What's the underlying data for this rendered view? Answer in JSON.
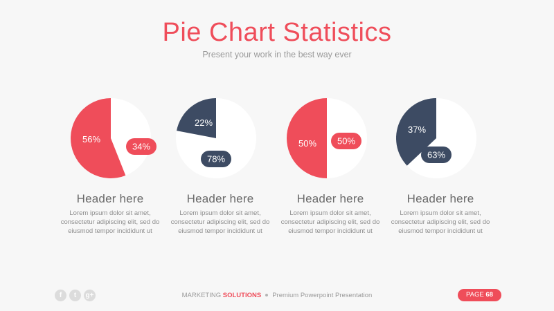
{
  "title": "Pie Chart Statistics",
  "subtitle": "Present your work in the best way ever",
  "colors": {
    "red": "#ef4d5a",
    "navy": "#3d4b63",
    "white": "#ffffff",
    "background": "#f7f7f7"
  },
  "chart_data": [
    {
      "type": "pie",
      "values": [
        56,
        34
      ],
      "slices": [
        {
          "label": "56%",
          "value": 56,
          "color": "#ef4d5a",
          "style": "slice"
        },
        {
          "label": "34%",
          "value": 34,
          "color": "#ef4d5a",
          "style": "pill"
        }
      ],
      "header": "Header here",
      "body": "Lorem ipsum dolor sit amet, consectetur adipiscing elit, sed do eiusmod tempor incididunt ut"
    },
    {
      "type": "pie",
      "values": [
        22,
        78
      ],
      "slices": [
        {
          "label": "22%",
          "value": 22,
          "color": "#3d4b63",
          "style": "slice"
        },
        {
          "label": "78%",
          "value": 78,
          "color": "#3d4b63",
          "style": "pill"
        }
      ],
      "header": "Header here",
      "body": "Lorem ipsum dolor sit amet, consectetur adipiscing elit, sed do eiusmod tempor incididunt ut"
    },
    {
      "type": "pie",
      "values": [
        50,
        50
      ],
      "slices": [
        {
          "label": "50%",
          "value": 50,
          "color": "#ef4d5a",
          "style": "slice"
        },
        {
          "label": "50%",
          "value": 50,
          "color": "#ef4d5a",
          "style": "pill"
        }
      ],
      "header": "Header here",
      "body": "Lorem ipsum dolor sit amet, consectetur adipiscing elit, sed do eiusmod tempor incididunt ut"
    },
    {
      "type": "pie",
      "values": [
        37,
        63
      ],
      "slices": [
        {
          "label": "37%",
          "value": 37,
          "color": "#3d4b63",
          "style": "slice"
        },
        {
          "label": "63%",
          "value": 63,
          "color": "#3d4b63",
          "style": "pill"
        }
      ],
      "header": "Header here",
      "body": "Lorem ipsum dolor sit amet, consectetur adipiscing elit, sed do eiusmod tempor incididunt ut"
    }
  ],
  "footer": {
    "social_icons": [
      "facebook-icon",
      "twitter-icon",
      "google-plus-icon"
    ],
    "brand_prefix": "MARKETING",
    "brand_accent": "SOLUTIONS",
    "tagline": "Premium Powerpoint Presentation",
    "page_label": "PAGE",
    "page_number": "68"
  }
}
